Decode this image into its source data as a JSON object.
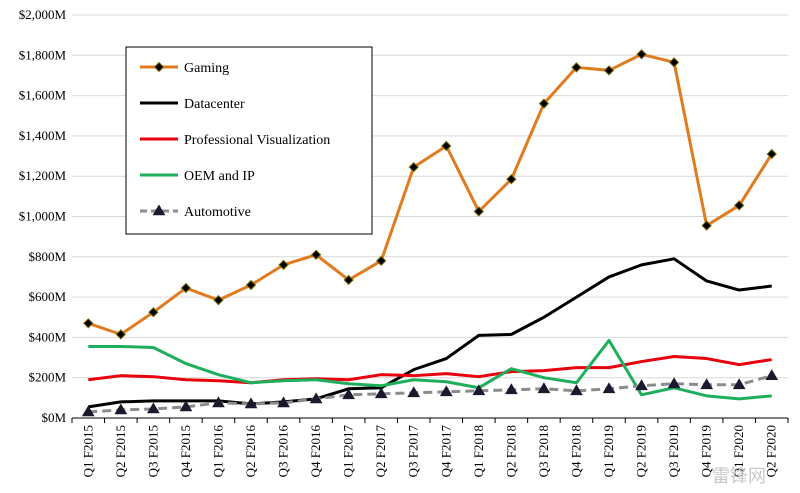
{
  "chart_data": {
    "type": "line",
    "title": "",
    "xlabel": "",
    "ylabel": "",
    "ylim": [
      0,
      2000
    ],
    "y_ticks": [
      0,
      200,
      400,
      600,
      800,
      1000,
      1200,
      1400,
      1600,
      1800,
      2000
    ],
    "y_tick_labels": [
      "$0M",
      "$200M",
      "$400M",
      "$600M",
      "$800M",
      "$1,000M",
      "$1,200M",
      "$1,400M",
      "$1,600M",
      "$1,800M",
      "$2,000M"
    ],
    "categories": [
      "Q1 F2015",
      "Q2 F2015",
      "Q3 F2015",
      "Q4 F2015",
      "Q1 F2016",
      "Q2 F2016",
      "Q3 F2016",
      "Q4 F2016",
      "Q1 F2017",
      "Q2 F2017",
      "Q3 F2017",
      "Q4 F2017",
      "Q1 F2018",
      "Q2 F2018",
      "Q3 F2018",
      "Q4 F2018",
      "Q1 F2019",
      "Q2 F2019",
      "Q3 F2019",
      "Q4 F2019",
      "Q1 F2020",
      "Q2 F2020"
    ],
    "grid": "horizontal",
    "legend_position": "top-left",
    "series": [
      {
        "name": "Gaming",
        "color": "#E07B1F",
        "style": "solid",
        "marker": "diamond",
        "values": [
          470,
          415,
          525,
          645,
          585,
          660,
          760,
          810,
          685,
          780,
          1245,
          1350,
          1025,
          1185,
          1560,
          1740,
          1725,
          1805,
          1765,
          955,
          1055,
          1310
        ]
      },
      {
        "name": "Datacenter",
        "color": "#000000",
        "style": "solid",
        "marker": "none",
        "values": [
          55,
          80,
          85,
          85,
          85,
          70,
          80,
          95,
          145,
          150,
          240,
          295,
          410,
          415,
          500,
          600,
          700,
          760,
          790,
          680,
          635,
          655
        ]
      },
      {
        "name": "Professional Visualization",
        "color": "#E8000C",
        "style": "solid",
        "marker": "none",
        "values": [
          190,
          210,
          205,
          190,
          185,
          175,
          190,
          195,
          190,
          215,
          210,
          220,
          205,
          230,
          235,
          250,
          250,
          280,
          305,
          295,
          265,
          290
        ]
      },
      {
        "name": "OEM and IP",
        "color": "#1DAF5C",
        "style": "solid",
        "marker": "none",
        "values": [
          355,
          355,
          350,
          270,
          215,
          175,
          185,
          190,
          170,
          160,
          190,
          180,
          150,
          245,
          200,
          175,
          385,
          115,
          150,
          110,
          95,
          110
        ]
      },
      {
        "name": "Automotive",
        "color": "#8C8C8C",
        "style": "dashed",
        "marker": "triangle",
        "values": [
          30,
          40,
          45,
          55,
          75,
          70,
          75,
          95,
          115,
          120,
          125,
          130,
          135,
          140,
          145,
          135,
          145,
          160,
          170,
          165,
          165,
          210
        ]
      }
    ]
  },
  "watermark": "雷锋网"
}
